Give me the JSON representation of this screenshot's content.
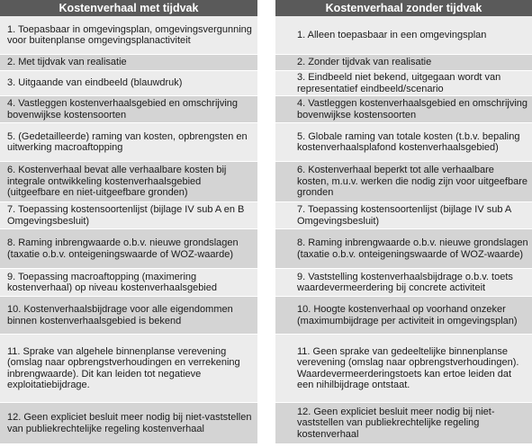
{
  "left": {
    "header": "Kostenverhaal met tijdvak",
    "rows": [
      "1.   Toepasbaar in omgevingsplan, omgevingsvergunning voor buitenplanse omgevingsplanactiviteit",
      "2.   Met tijdvak van realisatie",
      "3.   Uitgaande van eindbeeld (blauwdruk)",
      "4.   Vastleggen kostenverhaalsgebied en omschrijving bovenwijkse kostensoorten",
      "5.   (Gedetailleerde) raming van kosten, opbrengsten en uitwerking macroaftopping",
      "6.   Kostenverhaal bevat alle verhaalbare kosten bij integrale ontwikkeling kostenverhaalsgebied (uitgeefbare en niet-uitgeefbare gronden)",
      "7.   Toepassing kostensoortenlijst (bijlage IV sub A en B Omgevingsbesluit)",
      "8.   Raming inbrengwaarde o.b.v. nieuwe grondslagen (taxatie o.b.v. onteigeningswaarde of WOZ-waarde)",
      "9.   Toepassing macroaftopping (maximering kostenverhaal) op niveau kostenverhaalsgebied",
      "10.  Kostenverhaalsbijdrage voor alle eigendommen binnen kostenverhaalsgebied is bekend",
      "11.  Sprake van algehele binnenplanse verevening (omslag naar opbrengstverhoudingen en verrekening inbrengwaarde). Dit kan leiden tot negatieve exploitatiebijdrage.",
      "12.  Geen expliciet besluit meer nodig bij niet-vaststellen van publiekrechtelijke regeling kostenverhaal"
    ]
  },
  "right": {
    "header": "Kostenverhaal zonder tijdvak",
    "rows": [
      "1.   Alleen toepasbaar in een omgevingsplan",
      "2.   Zonder tijdvak van realisatie",
      "3.   Eindbeeld niet bekend, uitgegaan wordt van representatief eindbeeld/scenario",
      "4.   Vastleggen kostenverhaalsgebied en omschrijving bovenwijkse kostensoorten",
      "5.   Globale raming van totale kosten (t.b.v. bepaling kostenverhaalsplafond kostenverhaalsgebied)",
      "6.   Kostenverhaal beperkt tot alle verhaalbare kosten, m.u.v. werken die nodig zijn voor uitgeefbare gronden",
      "7.   Toepassing kostensoortenlijst (bijlage IV sub A Omgevingsbesluit)",
      "8.   Raming inbrengwaarde o.b.v. nieuwe grondslagen (taxatie o.b.v. onteigeningswaarde of WOZ-waarde)",
      "9.   Vaststelling kostenverhaalsbijdrage o.b.v. toets waardevermeerdering bij concrete activiteit",
      "10.  Hoogte kostenverhaal op voorhand onzeker (maximumbijdrage per activiteit in omgevingsplan)",
      "11.  Geen sprake van gedeeltelijke binnenplanse verevening (omslag naar opbrengstverhoudingen). Waardevermeerderingstoets kan ertoe leiden dat een nihilbijdrage ontstaat.",
      "12.  Geen expliciet besluit meer nodig bij niet-vaststellen van publiekrechtelijke regeling kostenverhaal"
    ]
  }
}
